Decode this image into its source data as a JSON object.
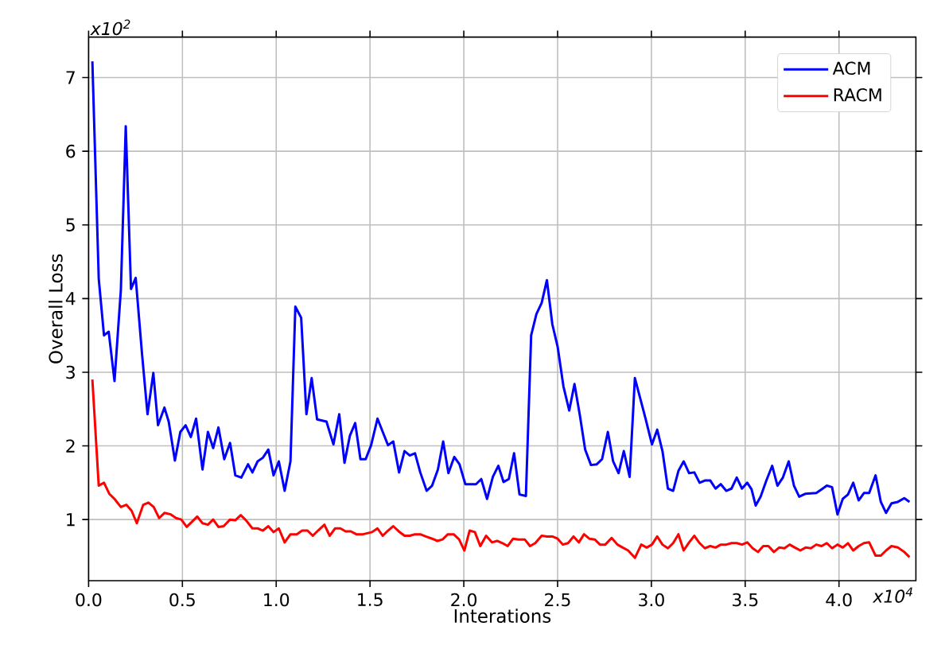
{
  "chart_data": {
    "type": "line",
    "xlabel": "Interations",
    "ylabel": "Overall Loss",
    "annotations": [
      "x10$^{2}$",
      "x10$^{4}$"
    ],
    "xlim": [
      0,
      4.41
    ],
    "ylim": [
      0.17,
      7.55
    ],
    "xticks": [
      {
        "value": 0,
        "label": "0.0"
      },
      {
        "value": 0.5,
        "label": "0.5"
      },
      {
        "value": 1,
        "label": "1.0"
      },
      {
        "value": 1.5,
        "label": "1.5"
      },
      {
        "value": 2,
        "label": "2.0"
      },
      {
        "value": 2.5,
        "label": "2.5"
      },
      {
        "value": 3,
        "label": "3.0"
      },
      {
        "value": 3.5,
        "label": "3.5"
      },
      {
        "value": 4,
        "label": "4.0"
      }
    ],
    "yticks": [
      1,
      2,
      3,
      4,
      5,
      6,
      7
    ],
    "grid": true,
    "legend": "top right",
    "series": [
      {
        "name": "ACM",
        "color": "#0000ff",
        "x": [
          0.02,
          0.054,
          0.082,
          0.107,
          0.138,
          0.172,
          0.198,
          0.226,
          0.251,
          0.285,
          0.314,
          0.345,
          0.37,
          0.404,
          0.427,
          0.46,
          0.489,
          0.517,
          0.545,
          0.573,
          0.607,
          0.636,
          0.664,
          0.692,
          0.723,
          0.754,
          0.782,
          0.814,
          0.85,
          0.873,
          0.901,
          0.929,
          0.958,
          0.986,
          1.014,
          1.045,
          1.076,
          1.102,
          1.133,
          1.161,
          1.189,
          1.218,
          1.268,
          1.305,
          1.336,
          1.364,
          1.393,
          1.421,
          1.449,
          1.477,
          1.506,
          1.54,
          1.568,
          1.596,
          1.624,
          1.655,
          1.684,
          1.712,
          1.74,
          1.768,
          1.802,
          1.831,
          1.862,
          1.89,
          1.918,
          1.949,
          1.977,
          2.008,
          2.037,
          2.065,
          2.093,
          2.124,
          2.155,
          2.184,
          2.212,
          2.24,
          2.268,
          2.297,
          2.331,
          2.359,
          2.387,
          2.415,
          2.443,
          2.472,
          2.5,
          2.531,
          2.562,
          2.59,
          2.619,
          2.647,
          2.678,
          2.709,
          2.737,
          2.768,
          2.796,
          2.825,
          2.853,
          2.884,
          2.912,
          2.969,
          3.003,
          3.031,
          3.059,
          3.088,
          3.116,
          3.144,
          3.172,
          3.201,
          3.229,
          3.257,
          3.285,
          3.314,
          3.342,
          3.37,
          3.399,
          3.427,
          3.455,
          3.483,
          3.511,
          3.534,
          3.556,
          3.582,
          3.613,
          3.644,
          3.672,
          3.701,
          3.732,
          3.76,
          3.788,
          3.822,
          3.879,
          3.907,
          3.935,
          3.963,
          3.992,
          4.02,
          4.048,
          4.076,
          4.105,
          4.133,
          4.161,
          4.195,
          4.223,
          4.251,
          4.28,
          4.314,
          4.348,
          4.376
        ],
        "values": [
          7.22,
          4.27,
          3.5,
          3.55,
          2.88,
          4.12,
          6.34,
          4.13,
          4.28,
          3.24,
          2.43,
          2.99,
          2.28,
          2.52,
          2.33,
          1.8,
          2.19,
          2.28,
          2.12,
          2.37,
          1.68,
          2.19,
          1.97,
          2.25,
          1.82,
          2.04,
          1.6,
          1.57,
          1.75,
          1.64,
          1.79,
          1.84,
          1.95,
          1.6,
          1.79,
          1.39,
          1.79,
          3.89,
          3.74,
          2.43,
          2.92,
          2.36,
          2.33,
          2.02,
          2.43,
          1.77,
          2.14,
          2.31,
          1.82,
          1.82,
          2.01,
          2.37,
          2.19,
          2.01,
          2.06,
          1.64,
          1.93,
          1.87,
          1.9,
          1.64,
          1.39,
          1.46,
          1.68,
          2.06,
          1.63,
          1.85,
          1.75,
          1.48,
          1.48,
          1.48,
          1.55,
          1.28,
          1.58,
          1.73,
          1.51,
          1.55,
          1.9,
          1.34,
          1.32,
          3.5,
          3.79,
          3.94,
          4.25,
          3.65,
          3.35,
          2.81,
          2.48,
          2.84,
          2.41,
          1.95,
          1.74,
          1.75,
          1.82,
          2.19,
          1.79,
          1.63,
          1.93,
          1.58,
          2.92,
          2.37,
          2.02,
          2.22,
          1.93,
          1.42,
          1.39,
          1.66,
          1.79,
          1.63,
          1.64,
          1.5,
          1.53,
          1.53,
          1.42,
          1.48,
          1.39,
          1.42,
          1.57,
          1.42,
          1.5,
          1.41,
          1.19,
          1.31,
          1.53,
          1.73,
          1.46,
          1.57,
          1.79,
          1.46,
          1.31,
          1.35,
          1.36,
          1.41,
          1.46,
          1.44,
          1.07,
          1.28,
          1.34,
          1.5,
          1.26,
          1.36,
          1.36,
          1.6,
          1.24,
          1.09,
          1.22,
          1.24,
          1.29,
          1.24
        ]
      },
      {
        "name": "RACM",
        "color": "#ff0000",
        "x": [
          0.02,
          0.054,
          0.082,
          0.11,
          0.138,
          0.172,
          0.201,
          0.229,
          0.257,
          0.291,
          0.319,
          0.347,
          0.376,
          0.404,
          0.438,
          0.466,
          0.494,
          0.523,
          0.551,
          0.579,
          0.607,
          0.636,
          0.664,
          0.692,
          0.72,
          0.754,
          0.782,
          0.811,
          0.839,
          0.873,
          0.901,
          0.929,
          0.958,
          0.986,
          1.014,
          1.045,
          1.076,
          1.11,
          1.138,
          1.167,
          1.195,
          1.223,
          1.257,
          1.285,
          1.314,
          1.342,
          1.37,
          1.398,
          1.427,
          1.463,
          1.511,
          1.54,
          1.568,
          1.596,
          1.624,
          1.653,
          1.684,
          1.712,
          1.74,
          1.768,
          1.797,
          1.831,
          1.859,
          1.887,
          1.915,
          1.946,
          1.975,
          2.003,
          2.031,
          2.059,
          2.088,
          2.119,
          2.15,
          2.178,
          2.206,
          2.234,
          2.263,
          2.291,
          2.325,
          2.353,
          2.381,
          2.415,
          2.443,
          2.472,
          2.5,
          2.528,
          2.556,
          2.585,
          2.613,
          2.641,
          2.669,
          2.698,
          2.726,
          2.754,
          2.788,
          2.819,
          2.847,
          2.876,
          2.912,
          2.946,
          2.975,
          3.003,
          3.031,
          3.059,
          3.088,
          3.116,
          3.144,
          3.172,
          3.201,
          3.229,
          3.257,
          3.285,
          3.314,
          3.342,
          3.37,
          3.399,
          3.427,
          3.455,
          3.483,
          3.511,
          3.54,
          3.568,
          3.596,
          3.624,
          3.653,
          3.681,
          3.709,
          3.737,
          3.765,
          3.794,
          3.822,
          3.85,
          3.879,
          3.907,
          3.935,
          3.963,
          3.992,
          4.02,
          4.048,
          4.076,
          4.105,
          4.133,
          4.161,
          4.195,
          4.223,
          4.251,
          4.28,
          4.314,
          4.348,
          4.376
        ],
        "values": [
          2.9,
          1.46,
          1.5,
          1.35,
          1.28,
          1.17,
          1.2,
          1.12,
          0.95,
          1.2,
          1.23,
          1.17,
          1.02,
          1.09,
          1.07,
          1.02,
          1.0,
          0.9,
          0.97,
          1.04,
          0.95,
          0.93,
          1.0,
          0.9,
          0.91,
          1.0,
          0.99,
          1.06,
          0.99,
          0.88,
          0.88,
          0.85,
          0.91,
          0.83,
          0.88,
          0.69,
          0.8,
          0.8,
          0.85,
          0.85,
          0.78,
          0.85,
          0.93,
          0.78,
          0.88,
          0.88,
          0.84,
          0.84,
          0.8,
          0.8,
          0.83,
          0.88,
          0.78,
          0.85,
          0.91,
          0.84,
          0.78,
          0.78,
          0.8,
          0.8,
          0.77,
          0.74,
          0.71,
          0.73,
          0.8,
          0.8,
          0.73,
          0.58,
          0.85,
          0.83,
          0.64,
          0.78,
          0.69,
          0.71,
          0.68,
          0.64,
          0.74,
          0.73,
          0.73,
          0.64,
          0.68,
          0.78,
          0.77,
          0.77,
          0.74,
          0.66,
          0.68,
          0.77,
          0.69,
          0.8,
          0.74,
          0.73,
          0.66,
          0.66,
          0.75,
          0.66,
          0.62,
          0.58,
          0.48,
          0.66,
          0.62,
          0.66,
          0.77,
          0.66,
          0.61,
          0.68,
          0.8,
          0.58,
          0.69,
          0.78,
          0.68,
          0.61,
          0.64,
          0.62,
          0.66,
          0.66,
          0.68,
          0.68,
          0.66,
          0.69,
          0.61,
          0.56,
          0.64,
          0.64,
          0.56,
          0.62,
          0.61,
          0.66,
          0.62,
          0.58,
          0.62,
          0.61,
          0.66,
          0.64,
          0.68,
          0.61,
          0.66,
          0.62,
          0.68,
          0.58,
          0.64,
          0.68,
          0.69,
          0.51,
          0.51,
          0.58,
          0.64,
          0.62,
          0.56,
          0.49
        ]
      }
    ]
  }
}
